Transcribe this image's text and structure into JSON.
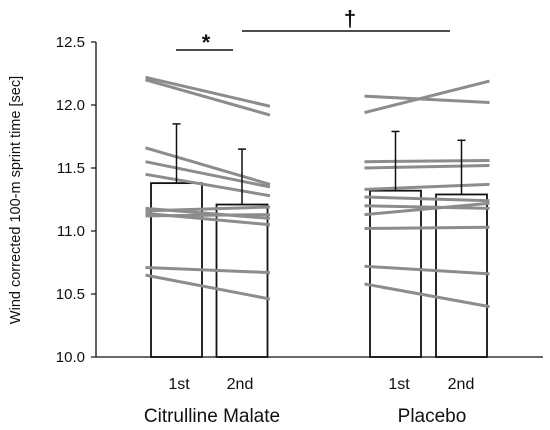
{
  "chart_data": {
    "type": "bar",
    "ylabel": "Wind corrected 100-m sprint time [sec]",
    "ylim": [
      10.0,
      12.5
    ],
    "yticks": [
      "10.0",
      "10.5",
      "11.0",
      "11.5",
      "12.0",
      "12.5"
    ],
    "grid": false,
    "groups": [
      {
        "label": "Citrulline Malate",
        "conditions": [
          "1st",
          "2nd"
        ],
        "means": [
          11.38,
          11.21
        ],
        "sd": [
          0.47,
          0.44
        ],
        "individual": [
          [
            12.22,
            11.99
          ],
          [
            12.2,
            11.92
          ],
          [
            11.66,
            11.37
          ],
          [
            11.55,
            11.35
          ],
          [
            11.45,
            11.28
          ],
          [
            11.18,
            11.1
          ],
          [
            11.16,
            11.19
          ],
          [
            11.14,
            11.05
          ],
          [
            11.12,
            11.13
          ],
          [
            10.71,
            10.67
          ],
          [
            10.65,
            10.46
          ]
        ]
      },
      {
        "label": "Placebo",
        "conditions": [
          "1st",
          "2nd"
        ],
        "means": [
          11.32,
          11.29
        ],
        "sd": [
          0.47,
          0.43
        ],
        "individual": [
          [
            12.07,
            12.02
          ],
          [
            11.94,
            12.19
          ],
          [
            11.55,
            11.56
          ],
          [
            11.5,
            11.52
          ],
          [
            11.33,
            11.37
          ],
          [
            11.27,
            11.24
          ],
          [
            11.2,
            11.18
          ],
          [
            11.13,
            11.22
          ],
          [
            11.02,
            11.03
          ],
          [
            10.72,
            10.66
          ],
          [
            10.58,
            10.4
          ]
        ]
      }
    ],
    "annotations": [
      {
        "symbol": "*"
      },
      {
        "symbol": "†"
      }
    ],
    "colors": {
      "bar_fill": "#ffffff",
      "bar_stroke": "#111111",
      "individual_line": "#8c8c8c",
      "axis": "#111111"
    }
  }
}
